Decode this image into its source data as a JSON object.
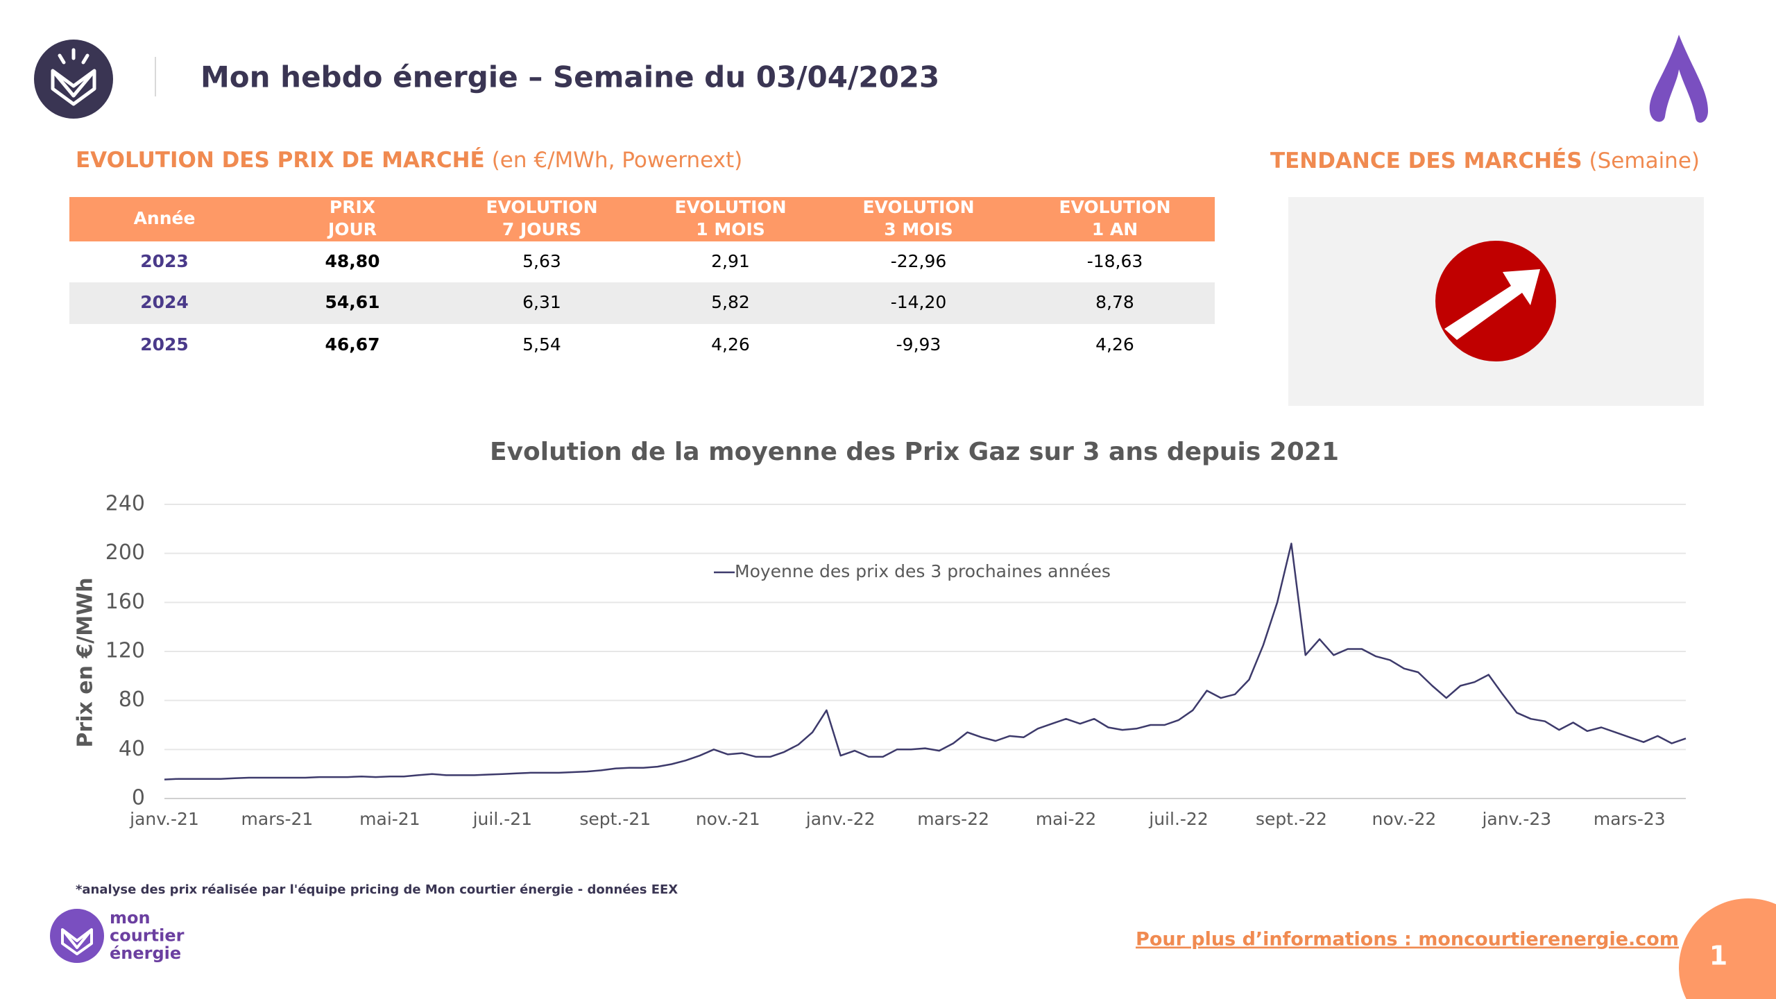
{
  "header": {
    "title": "Mon hebdo énergie – Semaine du 03/04/2023"
  },
  "market": {
    "heading": "EVOLUTION DES PRIX DE MARCHÉ",
    "subheading": "(en €/MWh, Powernext)"
  },
  "trend": {
    "heading": "TENDANCE DES MARCHÉS",
    "subheading": "(Semaine)"
  },
  "table": {
    "columns": [
      [
        "Année"
      ],
      [
        "PRIX",
        "JOUR"
      ],
      [
        "EVOLUTION",
        "7 JOURS"
      ],
      [
        "EVOLUTION",
        "1 MOIS"
      ],
      [
        "EVOLUTION",
        "3 MOIS"
      ],
      [
        "EVOLUTION",
        "1 AN"
      ]
    ],
    "rows": [
      [
        "2023",
        "48,80",
        "5,63",
        "2,91",
        "-22,96",
        "-18,63"
      ],
      [
        "2024",
        "54,61",
        "6,31",
        "5,82",
        "-14,20",
        "8,78"
      ],
      [
        "2025",
        "46,67",
        "5,54",
        "4,26",
        "-9,93",
        "4,26"
      ]
    ]
  },
  "chart_data": {
    "type": "line",
    "title": "Evolution de la moyenne des Prix Gaz sur 3 ans depuis 2021",
    "y_label": "Prix en €/MWh",
    "categories": [
      "janv.-21",
      null,
      null,
      null,
      null,
      null,
      null,
      null,
      "mars-21",
      null,
      null,
      null,
      null,
      null,
      null,
      null,
      "mai-21",
      null,
      null,
      null,
      null,
      null,
      null,
      null,
      "juil.-21",
      null,
      null,
      null,
      null,
      null,
      null,
      null,
      "sept.-21",
      null,
      null,
      null,
      null,
      null,
      null,
      null,
      "nov.-21",
      null,
      null,
      null,
      null,
      null,
      null,
      null,
      "janv.-22",
      null,
      null,
      null,
      null,
      null,
      null,
      null,
      "mars-22",
      null,
      null,
      null,
      null,
      null,
      null,
      null,
      "mai-22",
      null,
      null,
      null,
      null,
      null,
      null,
      null,
      "juil.-22",
      null,
      null,
      null,
      null,
      null,
      null,
      null,
      "sept.-22",
      null,
      null,
      null,
      null,
      null,
      null,
      null,
      "nov.-22",
      null,
      null,
      null,
      null,
      null,
      null,
      null,
      "janv.-23",
      null,
      null,
      null,
      null,
      null,
      null,
      null,
      "mars-23",
      null,
      null,
      null,
      null
    ],
    "series": [
      {
        "name": "Moyenne des prix des 3 prochaines années",
        "color": "#3d3a6b",
        "values": [
          15.5,
          16,
          16,
          16,
          16,
          16.5,
          17,
          17,
          17,
          17,
          17,
          17.5,
          17.5,
          17.5,
          18,
          17.5,
          18,
          18,
          19,
          20,
          19,
          19,
          19,
          19.5,
          20,
          20.5,
          21,
          21,
          21,
          21.5,
          22,
          23,
          24.5,
          25,
          25,
          26,
          28,
          31,
          35,
          40,
          36,
          37,
          34,
          34,
          38,
          44,
          54,
          72,
          35,
          39,
          34,
          34,
          40,
          40,
          41,
          39,
          45,
          54,
          50,
          47,
          51,
          50,
          57,
          61,
          65,
          61,
          65,
          58,
          56,
          57,
          60,
          60,
          64,
          72,
          88,
          82,
          85,
          97,
          125,
          160,
          208,
          117,
          130,
          117,
          122,
          122,
          116,
          113,
          106,
          103,
          92,
          82,
          92,
          95,
          101,
          85,
          70,
          65,
          63,
          56,
          62,
          55,
          58,
          54,
          50,
          46,
          51,
          45,
          49
        ]
      }
    ],
    "ylim": [
      0,
      240
    ],
    "yticks": [
      0,
      40,
      80,
      120,
      160,
      200,
      240
    ],
    "grid": true
  },
  "footnote": "*analyse des prix réalisée par l'équipe pricing de Mon courtier énergie -  données EEX",
  "brand": [
    "mon",
    "courtier",
    "énergie"
  ],
  "link": "Pour plus d’informations : moncourtierenergie.com",
  "page_number": "1"
}
